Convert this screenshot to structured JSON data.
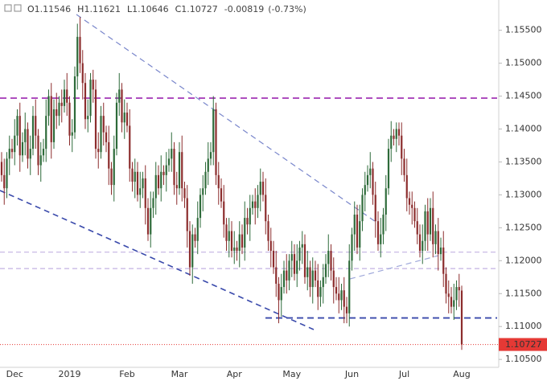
{
  "chart_data": {
    "type": "candlestick",
    "header_labels": [
      "O",
      "H",
      "L",
      "C"
    ],
    "change": -0.00819,
    "change_pct": {
      "value": -0.73,
      "label": "(-0.73%)"
    },
    "colors": {
      "up": "#2e6b3a",
      "down": "#8c2d2d",
      "last": "#e53935"
    },
    "categories": [
      null,
      null,
      null,
      null,
      null,
      "Dec",
      null,
      null,
      null,
      null,
      null,
      null,
      null,
      null,
      null,
      null,
      null,
      null,
      null,
      null,
      null,
      null,
      null,
      null,
      null,
      null,
      "2019",
      null,
      null,
      null,
      null,
      null,
      null,
      null,
      null,
      null,
      null,
      null,
      null,
      null,
      null,
      null,
      null,
      null,
      null,
      null,
      null,
      null,
      "Feb",
      null,
      null,
      null,
      null,
      null,
      null,
      null,
      null,
      null,
      null,
      null,
      null,
      null,
      null,
      null,
      null,
      null,
      null,
      null,
      "Mar",
      null,
      null,
      null,
      null,
      null,
      null,
      null,
      null,
      null,
      null,
      null,
      null,
      null,
      null,
      null,
      null,
      null,
      null,
      null,
      null,
      "Apr",
      null,
      null,
      null,
      null,
      null,
      null,
      null,
      null,
      null,
      null,
      null,
      null,
      null,
      null,
      null,
      null,
      null,
      null,
      null,
      null,
      null,
      "May",
      null,
      null,
      null,
      null,
      null,
      null,
      null,
      null,
      null,
      null,
      null,
      null,
      null,
      null,
      null,
      null,
      null,
      null,
      null,
      null,
      null,
      null,
      "Jun",
      null,
      null,
      null,
      null,
      null,
      null,
      null,
      null,
      null,
      null,
      null,
      null,
      null,
      null,
      null,
      null,
      null,
      null,
      null,
      "Jul",
      null,
      null,
      null,
      null,
      null,
      null,
      null,
      null,
      null,
      null,
      null,
      null,
      null,
      null,
      null,
      null,
      null,
      null,
      null,
      null,
      null,
      "Aug"
    ],
    "open": [
      1.135,
      1.133,
      1.131,
      1.1355,
      1.137,
      1.1365,
      1.139,
      1.142,
      1.136,
      1.138,
      1.14,
      1.1355,
      1.137,
      1.142,
      1.139,
      1.1345,
      1.136,
      1.137,
      1.142,
      1.145,
      1.138,
      1.143,
      1.142,
      1.144,
      1.1435,
      1.146,
      1.144,
      1.139,
      1.1395,
      1.148,
      1.154,
      1.15,
      1.147,
      1.1415,
      1.142,
      1.1475,
      1.146,
      1.137,
      1.1365,
      1.142,
      1.1395,
      1.138,
      1.134,
      1.1315,
      1.137,
      1.144,
      1.146,
      1.141,
      1.1425,
      1.1405,
      1.134,
      1.132,
      1.1335,
      1.13,
      1.131,
      1.1325,
      1.128,
      1.124,
      1.128,
      1.1295,
      1.133,
      1.131,
      1.1335,
      1.133,
      1.1345,
      1.1355,
      1.137,
      1.1315,
      1.131,
      1.1365,
      1.131,
      1.1295,
      1.1245,
      1.119,
      1.124,
      1.123,
      1.1265,
      1.13,
      1.131,
      1.1335,
      1.1355,
      1.1365,
      1.143,
      1.133,
      1.131,
      1.129,
      1.1255,
      1.123,
      1.1245,
      1.1215,
      1.122,
      1.1215,
      1.124,
      1.122,
      1.1265,
      1.1255,
      1.128,
      1.129,
      1.128,
      1.13,
      1.132,
      1.13,
      1.126,
      1.123,
      1.1215,
      1.119,
      1.1165,
      1.114,
      1.116,
      1.1185,
      1.117,
      1.12,
      1.121,
      1.118,
      1.12,
      1.122,
      1.1225,
      1.1175,
      1.119,
      1.116,
      1.1185,
      1.117,
      1.1145,
      1.116,
      1.1175,
      1.1195,
      1.1215,
      1.1185,
      1.116,
      1.115,
      1.114,
      1.1155,
      1.113,
      1.112,
      1.12,
      1.124,
      1.127,
      1.122,
      1.126,
      1.13,
      1.1315,
      1.133,
      1.134,
      1.13,
      1.126,
      1.1225,
      1.124,
      1.127,
      1.131,
      1.137,
      1.139,
      1.1385,
      1.14,
      1.139,
      1.1355,
      1.133,
      1.1295,
      1.1285,
      1.128,
      1.126,
      1.124,
      1.1215,
      1.123,
      1.1275,
      1.124,
      1.128,
      1.1225,
      1.1245,
      1.121,
      1.122,
      1.118,
      1.115,
      1.1145,
      1.113,
      1.114,
      1.116,
      1.11546
    ],
    "high": [
      1.1365,
      1.1355,
      1.1365,
      1.139,
      1.1385,
      1.1415,
      1.143,
      1.144,
      1.1395,
      1.1425,
      1.141,
      1.139,
      1.1435,
      1.1445,
      1.14,
      1.138,
      1.1385,
      1.1445,
      1.146,
      1.147,
      1.1445,
      1.1455,
      1.145,
      1.146,
      1.1475,
      1.1485,
      1.145,
      1.1415,
      1.1495,
      1.156,
      1.157,
      1.152,
      1.1485,
      1.1445,
      1.1485,
      1.149,
      1.1475,
      1.1395,
      1.1435,
      1.144,
      1.1405,
      1.1405,
      1.135,
      1.139,
      1.1455,
      1.1485,
      1.147,
      1.1445,
      1.144,
      1.143,
      1.135,
      1.1355,
      1.135,
      1.1335,
      1.1335,
      1.1345,
      1.1295,
      1.1305,
      1.1305,
      1.135,
      1.1345,
      1.136,
      1.1345,
      1.1365,
      1.137,
      1.1395,
      1.138,
      1.1335,
      1.138,
      1.139,
      1.132,
      1.1315,
      1.126,
      1.1255,
      1.125,
      1.129,
      1.131,
      1.133,
      1.135,
      1.138,
      1.138,
      1.145,
      1.144,
      1.135,
      1.1325,
      1.1315,
      1.1265,
      1.1265,
      1.126,
      1.1245,
      1.123,
      1.126,
      1.1255,
      1.129,
      1.128,
      1.13,
      1.13,
      1.131,
      1.1315,
      1.134,
      1.1335,
      1.1325,
      1.127,
      1.125,
      1.123,
      1.1215,
      1.1175,
      1.118,
      1.12,
      1.121,
      1.121,
      1.123,
      1.1225,
      1.1225,
      1.123,
      1.1245,
      1.124,
      1.1215,
      1.12,
      1.1205,
      1.12,
      1.1195,
      1.117,
      1.1195,
      1.121,
      1.124,
      1.1225,
      1.1205,
      1.1175,
      1.1175,
      1.1165,
      1.1175,
      1.1145,
      1.1225,
      1.125,
      1.129,
      1.1285,
      1.1285,
      1.131,
      1.1335,
      1.1345,
      1.1365,
      1.135,
      1.132,
      1.1275,
      1.1265,
      1.128,
      1.133,
      1.1385,
      1.1412,
      1.14,
      1.141,
      1.141,
      1.141,
      1.137,
      1.1355,
      1.1305,
      1.1305,
      1.129,
      1.128,
      1.1255,
      1.1255,
      1.1285,
      1.1295,
      1.1295,
      1.1305,
      1.1255,
      1.1265,
      1.1235,
      1.1245,
      1.119,
      1.117,
      1.116,
      1.1165,
      1.117,
      1.118,
      1.11621
    ],
    "low": [
      1.132,
      1.1285,
      1.1295,
      1.133,
      1.1355,
      1.1345,
      1.1375,
      1.1335,
      1.135,
      1.136,
      1.134,
      1.133,
      1.136,
      1.137,
      1.133,
      1.132,
      1.135,
      1.135,
      1.1405,
      1.1355,
      1.137,
      1.14,
      1.1405,
      1.141,
      1.1425,
      1.142,
      1.1375,
      1.1365,
      1.1385,
      1.146,
      1.1485,
      1.1445,
      1.14,
      1.1395,
      1.141,
      1.144,
      1.1355,
      1.134,
      1.1355,
      1.1375,
      1.1365,
      1.1315,
      1.13,
      1.129,
      1.136,
      1.142,
      1.1395,
      1.1385,
      1.1395,
      1.132,
      1.1305,
      1.1295,
      1.129,
      1.128,
      1.1295,
      1.1255,
      1.123,
      1.122,
      1.1265,
      1.127,
      1.13,
      1.129,
      1.1315,
      1.1305,
      1.1335,
      1.1335,
      1.13,
      1.1285,
      1.13,
      1.129,
      1.128,
      1.122,
      1.1177,
      1.1165,
      1.122,
      1.121,
      1.125,
      1.1275,
      1.13,
      1.1315,
      1.1345,
      1.1345,
      1.1315,
      1.1285,
      1.128,
      1.1235,
      1.1215,
      1.1205,
      1.1205,
      1.1195,
      1.12,
      1.119,
      1.121,
      1.12,
      1.124,
      1.123,
      1.127,
      1.1255,
      1.1265,
      1.1275,
      1.129,
      1.124,
      1.1215,
      1.119,
      1.118,
      1.1145,
      1.1105,
      1.1115,
      1.115,
      1.115,
      1.1155,
      1.1175,
      1.117,
      1.116,
      1.1185,
      1.1195,
      1.1165,
      1.1155,
      1.1145,
      1.1135,
      1.116,
      1.1125,
      1.113,
      1.1135,
      1.1165,
      1.1175,
      1.117,
      1.1135,
      1.114,
      1.112,
      1.1125,
      1.1105,
      1.1105,
      1.11,
      1.1185,
      1.1215,
      1.121,
      1.12,
      1.1245,
      1.1275,
      1.1305,
      1.131,
      1.1285,
      1.1235,
      1.1215,
      1.1205,
      1.1225,
      1.1245,
      1.13,
      1.135,
      1.1375,
      1.1365,
      1.1375,
      1.133,
      1.132,
      1.1275,
      1.127,
      1.1255,
      1.125,
      1.1225,
      1.1205,
      1.1195,
      1.1215,
      1.1215,
      1.123,
      1.1205,
      1.121,
      1.1185,
      1.12,
      1.116,
      1.1135,
      1.112,
      1.112,
      1.111,
      1.1125,
      1.113,
      1.10646
    ],
    "close": [
      1.133,
      1.131,
      1.1355,
      1.137,
      1.1365,
      1.139,
      1.142,
      1.136,
      1.138,
      1.14,
      1.1355,
      1.137,
      1.142,
      1.139,
      1.1345,
      1.136,
      1.137,
      1.142,
      1.145,
      1.138,
      1.143,
      1.142,
      1.144,
      1.1435,
      1.146,
      1.144,
      1.139,
      1.1395,
      1.148,
      1.154,
      1.15,
      1.147,
      1.1415,
      1.142,
      1.1475,
      1.146,
      1.137,
      1.1365,
      1.142,
      1.1395,
      1.138,
      1.134,
      1.1315,
      1.137,
      1.144,
      1.146,
      1.141,
      1.1425,
      1.1405,
      1.134,
      1.132,
      1.1335,
      1.13,
      1.131,
      1.1325,
      1.128,
      1.124,
      1.128,
      1.1295,
      1.133,
      1.131,
      1.1335,
      1.133,
      1.1345,
      1.1355,
      1.137,
      1.1315,
      1.131,
      1.1365,
      1.131,
      1.1295,
      1.1245,
      1.119,
      1.124,
      1.123,
      1.1265,
      1.13,
      1.131,
      1.1335,
      1.1355,
      1.1365,
      1.143,
      1.133,
      1.131,
      1.129,
      1.1255,
      1.123,
      1.1245,
      1.1215,
      1.122,
      1.1215,
      1.124,
      1.122,
      1.1265,
      1.1255,
      1.128,
      1.129,
      1.128,
      1.13,
      1.132,
      1.13,
      1.126,
      1.123,
      1.1215,
      1.119,
      1.1165,
      1.114,
      1.116,
      1.1185,
      1.117,
      1.12,
      1.121,
      1.118,
      1.12,
      1.122,
      1.1225,
      1.1175,
      1.119,
      1.116,
      1.1185,
      1.117,
      1.1145,
      1.116,
      1.1175,
      1.1195,
      1.1215,
      1.1185,
      1.116,
      1.115,
      1.114,
      1.1155,
      1.113,
      1.112,
      1.12,
      1.124,
      1.127,
      1.122,
      1.126,
      1.13,
      1.1315,
      1.133,
      1.134,
      1.13,
      1.126,
      1.1225,
      1.124,
      1.127,
      1.131,
      1.137,
      1.139,
      1.1385,
      1.14,
      1.139,
      1.1355,
      1.133,
      1.1295,
      1.1285,
      1.128,
      1.126,
      1.124,
      1.1215,
      1.123,
      1.1275,
      1.124,
      1.128,
      1.1225,
      1.1245,
      1.121,
      1.122,
      1.118,
      1.115,
      1.1145,
      1.113,
      1.114,
      1.116,
      1.1155,
      1.10727
    ],
    "ylim": [
      1.1038,
      1.1596
    ],
    "yticks": [
      {
        "value": 1.105,
        "label": "1.10500"
      },
      {
        "value": 1.11,
        "label": "1.11000"
      },
      {
        "value": 1.115,
        "label": "1.11500"
      },
      {
        "value": 1.12,
        "label": "1.12000"
      },
      {
        "value": 1.125,
        "label": "1.12500"
      },
      {
        "value": 1.13,
        "label": "1.13000"
      },
      {
        "value": 1.135,
        "label": "1.13500"
      },
      {
        "value": 1.14,
        "label": "1.14000"
      },
      {
        "value": 1.145,
        "label": "1.14500"
      },
      {
        "value": 1.15,
        "label": "1.15000"
      },
      {
        "value": 1.155,
        "label": "1.15500"
      }
    ],
    "grid": false,
    "levels": [
      {
        "value": 1.1447,
        "color": "#9c27b0"
      },
      {
        "value": 1.1213,
        "color": "#c3b2e3"
      },
      {
        "value": 1.1188,
        "color": "#c3b2e3"
      },
      {
        "value": 1.1113,
        "color": "#3949ab"
      }
    ]
  }
}
